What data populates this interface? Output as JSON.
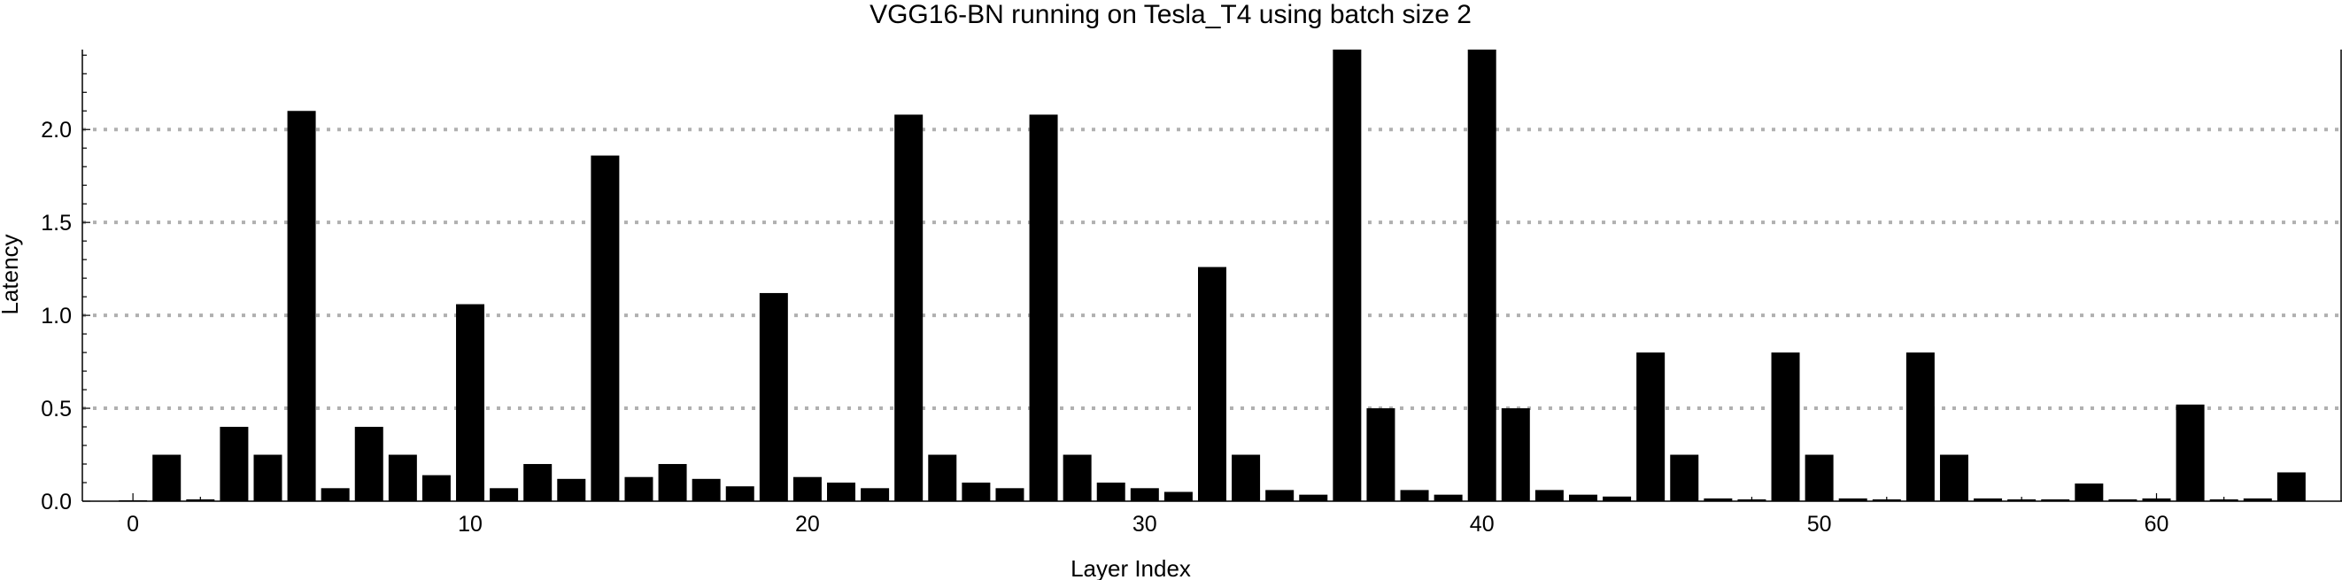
{
  "chart_data": {
    "type": "bar",
    "title": "VGG16-BN running on Tesla_T4 using batch size 2",
    "xlabel": "Layer Index",
    "ylabel": "Latency",
    "xlim": [
      -1.5,
      65.5
    ],
    "ylim": [
      0,
      2.43
    ],
    "xticks": [
      0,
      10,
      20,
      30,
      40,
      50,
      60
    ],
    "yticks": [
      0.0,
      0.5,
      1.0,
      1.5,
      2.0
    ],
    "ytick_labels": [
      "0.0",
      "0.5",
      "1.0",
      "1.5",
      "2.0"
    ],
    "grid": "horizontal-dotted",
    "x": [
      0,
      1,
      2,
      3,
      4,
      5,
      6,
      7,
      8,
      9,
      10,
      11,
      12,
      13,
      14,
      15,
      16,
      17,
      18,
      19,
      20,
      21,
      22,
      23,
      24,
      25,
      26,
      27,
      28,
      29,
      30,
      31,
      32,
      33,
      34,
      35,
      36,
      37,
      38,
      39,
      40,
      41,
      42,
      43,
      44,
      45,
      46,
      47,
      48,
      49,
      50,
      51,
      52,
      53,
      54,
      55,
      56,
      57,
      58,
      59,
      60,
      61,
      62,
      63,
      64,
      65
    ],
    "values": [
      0.005,
      0.25,
      0.01,
      0.4,
      0.25,
      2.1,
      0.07,
      0.4,
      0.25,
      0.14,
      1.06,
      0.07,
      0.2,
      0.12,
      1.86,
      0.13,
      0.2,
      0.12,
      0.08,
      1.12,
      0.13,
      0.1,
      0.07,
      2.08,
      0.25,
      0.1,
      0.07,
      2.08,
      0.25,
      0.1,
      0.07,
      0.05,
      1.26,
      0.25,
      0.06,
      0.035,
      2.5,
      0.5,
      0.06,
      0.035,
      2.5,
      0.5,
      0.06,
      0.035,
      0.025,
      0.8,
      0.25,
      0.015,
      0.01,
      0.8,
      0.25,
      0.015,
      0.01,
      0.8,
      0.25,
      0.015,
      0.01,
      0.01,
      0.095,
      0.01,
      0.015,
      0.52,
      0.01,
      0.015,
      0.155,
      0.0
    ]
  }
}
